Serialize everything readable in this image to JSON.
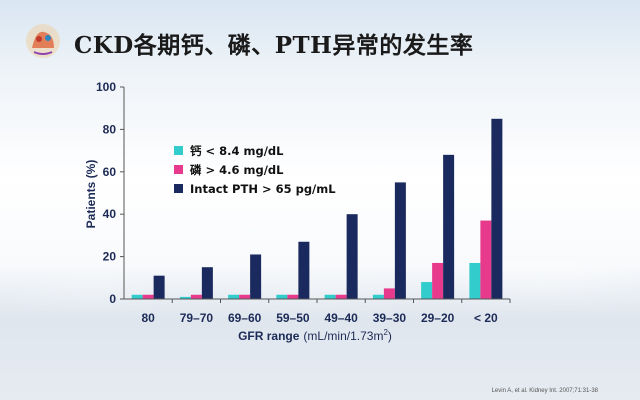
{
  "slide": {
    "title": "CKD各期钙、磷、PTH异常的发生率",
    "citation": "Levin A, et al. Kidney Int. 2007;71:31-38"
  },
  "colors": {
    "calcium": "#33cccc",
    "phosphorus": "#e83a8c",
    "pth": "#1a2a5e",
    "axis_text": "#1c2a56"
  },
  "chart_data": {
    "type": "bar",
    "categories": [
      "80",
      "79–70",
      "69–60",
      "59–50",
      "49–40",
      "39–30",
      "29–20",
      "< 20"
    ],
    "series": [
      {
        "name": "钙 < 8.4 mg/dL",
        "values": [
          2,
          1,
          2,
          2,
          2,
          2,
          8,
          17
        ]
      },
      {
        "name": "磷 > 4.6 mg/dL",
        "values": [
          2,
          2,
          2,
          2,
          2,
          5,
          17,
          37
        ]
      },
      {
        "name": "Intact PTH > 65 pg/mL",
        "values": [
          11,
          15,
          21,
          27,
          40,
          55,
          68,
          85
        ]
      }
    ],
    "xlabel_main": "GFR range",
    "xlabel_unit": "(mL/min/1.73m",
    "xlabel_sup": "2",
    "xlabel_end": ")",
    "ylabel": "Patients (%)",
    "ylim": [
      0,
      100
    ],
    "yticks": [
      "0",
      "20",
      "40",
      "60",
      "80",
      "100"
    ],
    "grid": false,
    "legend_position": "top-left"
  }
}
